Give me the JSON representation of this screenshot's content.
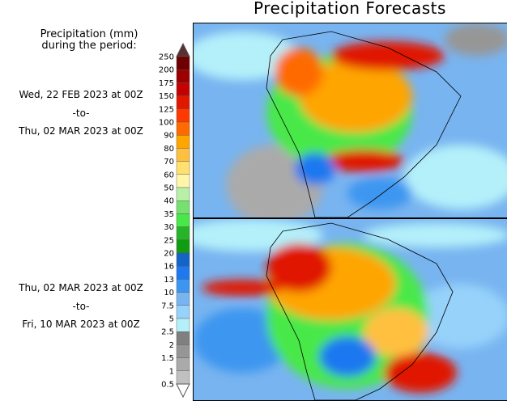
{
  "title": "Precipitation Forecasts",
  "legend": {
    "heading_line1": "Precipitation (mm)",
    "heading_line2": "during the period:",
    "ticks": [
      "250",
      "200",
      "175",
      "150",
      "125",
      "100",
      "90",
      "80",
      "70",
      "60",
      "50",
      "40",
      "35",
      "30",
      "25",
      "20",
      "16",
      "13",
      "10",
      "7.5",
      "5",
      "2.5",
      "2",
      "1.5",
      "1",
      "0.5"
    ],
    "colors": [
      "#6e0000",
      "#9c0000",
      "#c40000",
      "#e01800",
      "#ff3a00",
      "#ff6a00",
      "#ffa500",
      "#ffc040",
      "#ffe070",
      "#fff6aa",
      "#b8f0a8",
      "#78e070",
      "#48e848",
      "#28b428",
      "#109c10",
      "#1464c8",
      "#1e78f0",
      "#3c96f0",
      "#78b4f0",
      "#96d2fa",
      "#b4f0fa",
      "#808080",
      "#969696",
      "#aaaaaa",
      "#c0c0c0"
    ],
    "over_color": "#5a3030",
    "under_color": "#ffffff"
  },
  "periods": [
    {
      "start": "Wed, 22 FEB 2023 at 00Z",
      "sep": "-to-",
      "end": "Thu, 02 MAR 2023 at 00Z"
    },
    {
      "start": "Thu, 02 MAR 2023 at 00Z",
      "sep": "-to-",
      "end": "Fri, 10 MAR 2023 at 00Z"
    }
  ]
}
